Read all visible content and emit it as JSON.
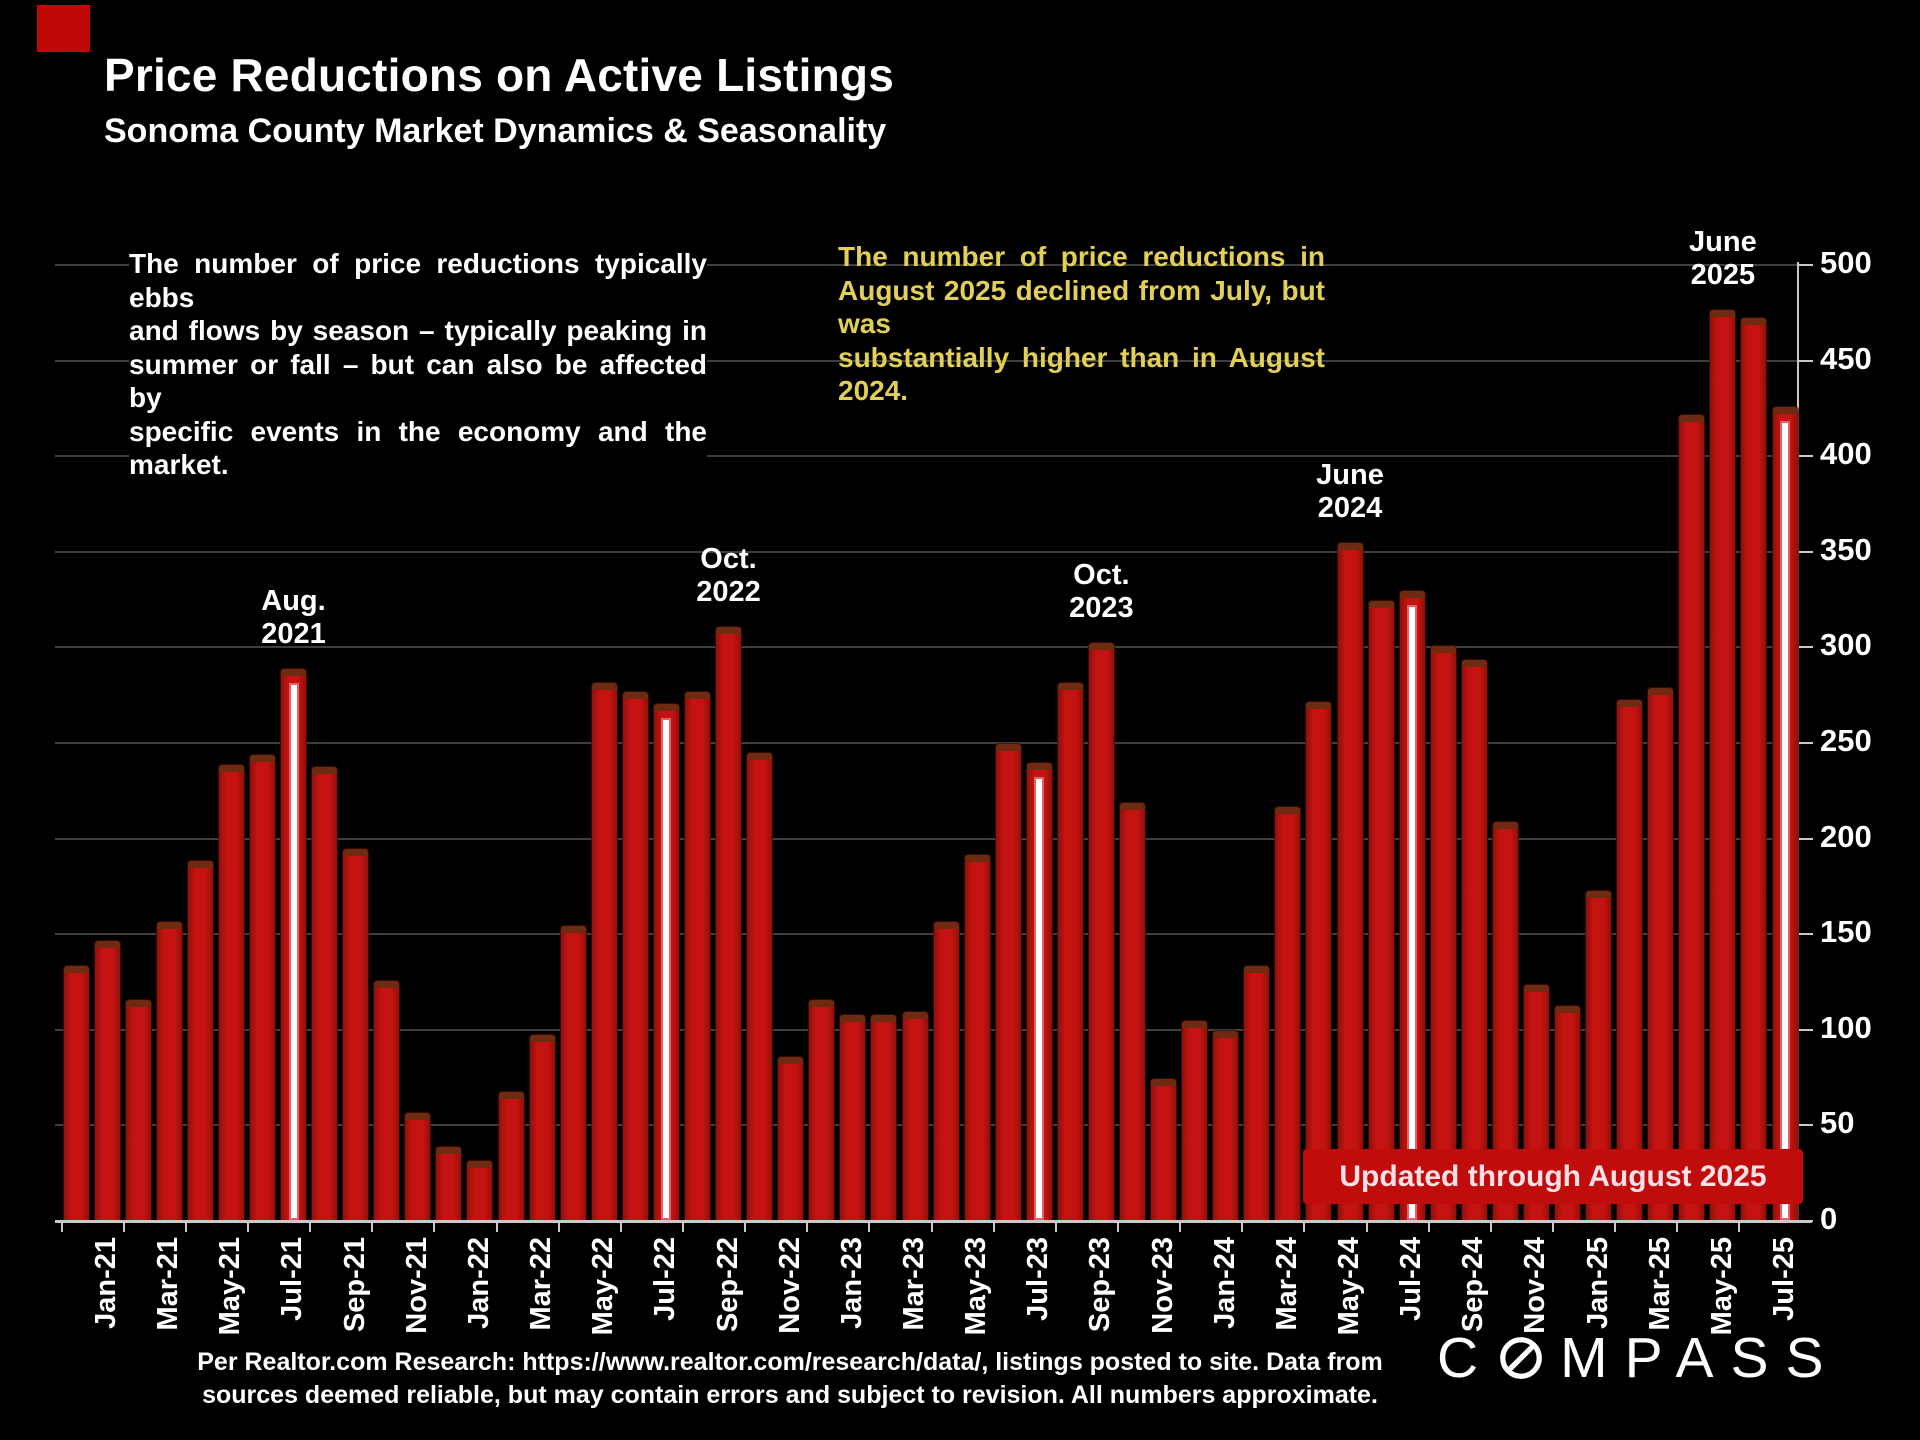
{
  "slide": {
    "title": "Price Reductions on Active Listings",
    "subtitle": "Sonoma County Market Dynamics & Seasonality",
    "note_left_lines": [
      "The number of price reductions typically ebbs",
      "and flows by season – typically peaking in",
      "summer or fall – but can also be affected by",
      "specific events in the economy and the market."
    ],
    "note_right_lines": [
      "The number of price reductions in",
      "August 2025 declined from July, but was",
      "substantially higher than in August 2024."
    ],
    "banner_label": "Updated through August 2025",
    "footer_line1": "Per Realtor.com Research: https://www.realtor.com/research/data/, listings posted to site. Data from",
    "footer_line2": "sources deemed reliable, but may contain errors and subject to revision. All numbers approximate.",
    "logo_text_left": "C",
    "logo_text_right": "MPASS",
    "colors": {
      "bar_red": "#c41310",
      "bar_edge_dark": "#6f2b12",
      "banner_red": "#c00c0a",
      "note_yellow": "#e2cf58",
      "august_highlight": "#ffffff",
      "gridline_gray": "#3f3f3f",
      "axis_gray": "#c9c9c9",
      "corner_accent_red": "#c10808"
    }
  },
  "chart_data": {
    "type": "bar",
    "title": "Price Reductions on Active Listings",
    "xlabel": "",
    "ylabel": "",
    "ylim": [
      0,
      500
    ],
    "ytick_step": 50,
    "grid": true,
    "y_axis_side": "right",
    "x_label_every": 2,
    "categories": [
      "Jan-21",
      "Feb-21",
      "Mar-21",
      "Apr-21",
      "May-21",
      "Jun-21",
      "Jul-21",
      "Aug-21",
      "Sep-21",
      "Oct-21",
      "Nov-21",
      "Dec-21",
      "Jan-22",
      "Feb-22",
      "Mar-22",
      "Apr-22",
      "May-22",
      "Jun-22",
      "Jul-22",
      "Aug-22",
      "Sep-22",
      "Oct-22",
      "Nov-22",
      "Dec-22",
      "Jan-23",
      "Feb-23",
      "Mar-23",
      "Apr-23",
      "May-23",
      "Jun-23",
      "Jul-23",
      "Aug-23",
      "Sep-23",
      "Oct-23",
      "Nov-23",
      "Dec-23",
      "Jan-24",
      "Feb-24",
      "Mar-24",
      "Apr-24",
      "May-24",
      "Jun-24",
      "Jul-24",
      "Aug-24",
      "Sep-24",
      "Oct-24",
      "Nov-24",
      "Dec-24",
      "Jan-25",
      "Feb-25",
      "Mar-25",
      "Apr-25",
      "May-25",
      "Jun-25",
      "Jul-25",
      "Aug-25"
    ],
    "values": [
      133,
      146,
      115,
      156,
      188,
      238,
      243,
      288,
      237,
      194,
      125,
      56,
      38,
      31,
      67,
      97,
      154,
      281,
      276,
      270,
      276,
      310,
      244,
      85,
      115,
      107,
      107,
      109,
      156,
      191,
      249,
      239,
      281,
      302,
      218,
      74,
      104,
      99,
      133,
      216,
      271,
      354,
      324,
      329,
      300,
      293,
      208,
      123,
      112,
      172,
      272,
      278,
      421,
      476,
      472,
      425
    ],
    "highlighted_categories": [
      "Aug-21",
      "Aug-22",
      "Aug-23",
      "Aug-24",
      "Aug-25"
    ],
    "annotations": [
      {
        "month": "Aug-21",
        "label_lines": [
          "Aug.",
          "2021"
        ]
      },
      {
        "month": "Oct-22",
        "label_lines": [
          "Oct.",
          "2022"
        ]
      },
      {
        "month": "Oct-23",
        "label_lines": [
          "Oct.",
          "2023"
        ]
      },
      {
        "month": "Jun-24",
        "label_lines": [
          "June",
          "2024"
        ]
      },
      {
        "month": "Jun-25",
        "label_lines": [
          "June",
          "2025"
        ]
      }
    ]
  }
}
